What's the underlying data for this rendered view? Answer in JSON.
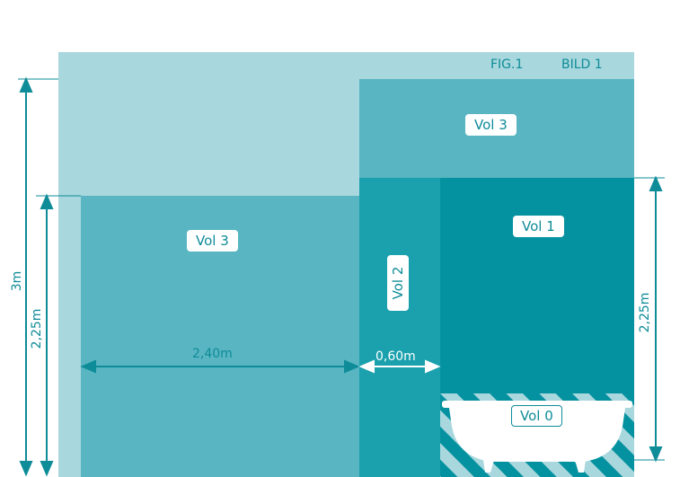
{
  "header": {
    "fig": "FIG.1",
    "bild": "BILD 1"
  },
  "zones": {
    "vol3_upper": "Vol 3",
    "vol3_left": "Vol  3",
    "vol2": "Vol 2",
    "vol1": "Vol 1",
    "vol0": "Vol 0"
  },
  "dimensions": {
    "total_height": "3m",
    "left_height": "2,25m",
    "right_height": "2,25m",
    "width_vol3": "2,40m",
    "width_vol2": "0,60m"
  },
  "colors": {
    "light": "#a8d7de",
    "medium": "#58b5c1",
    "vol2": "#1aa1ad",
    "vol1": "#0592a0",
    "accent": "#0e8c98"
  }
}
